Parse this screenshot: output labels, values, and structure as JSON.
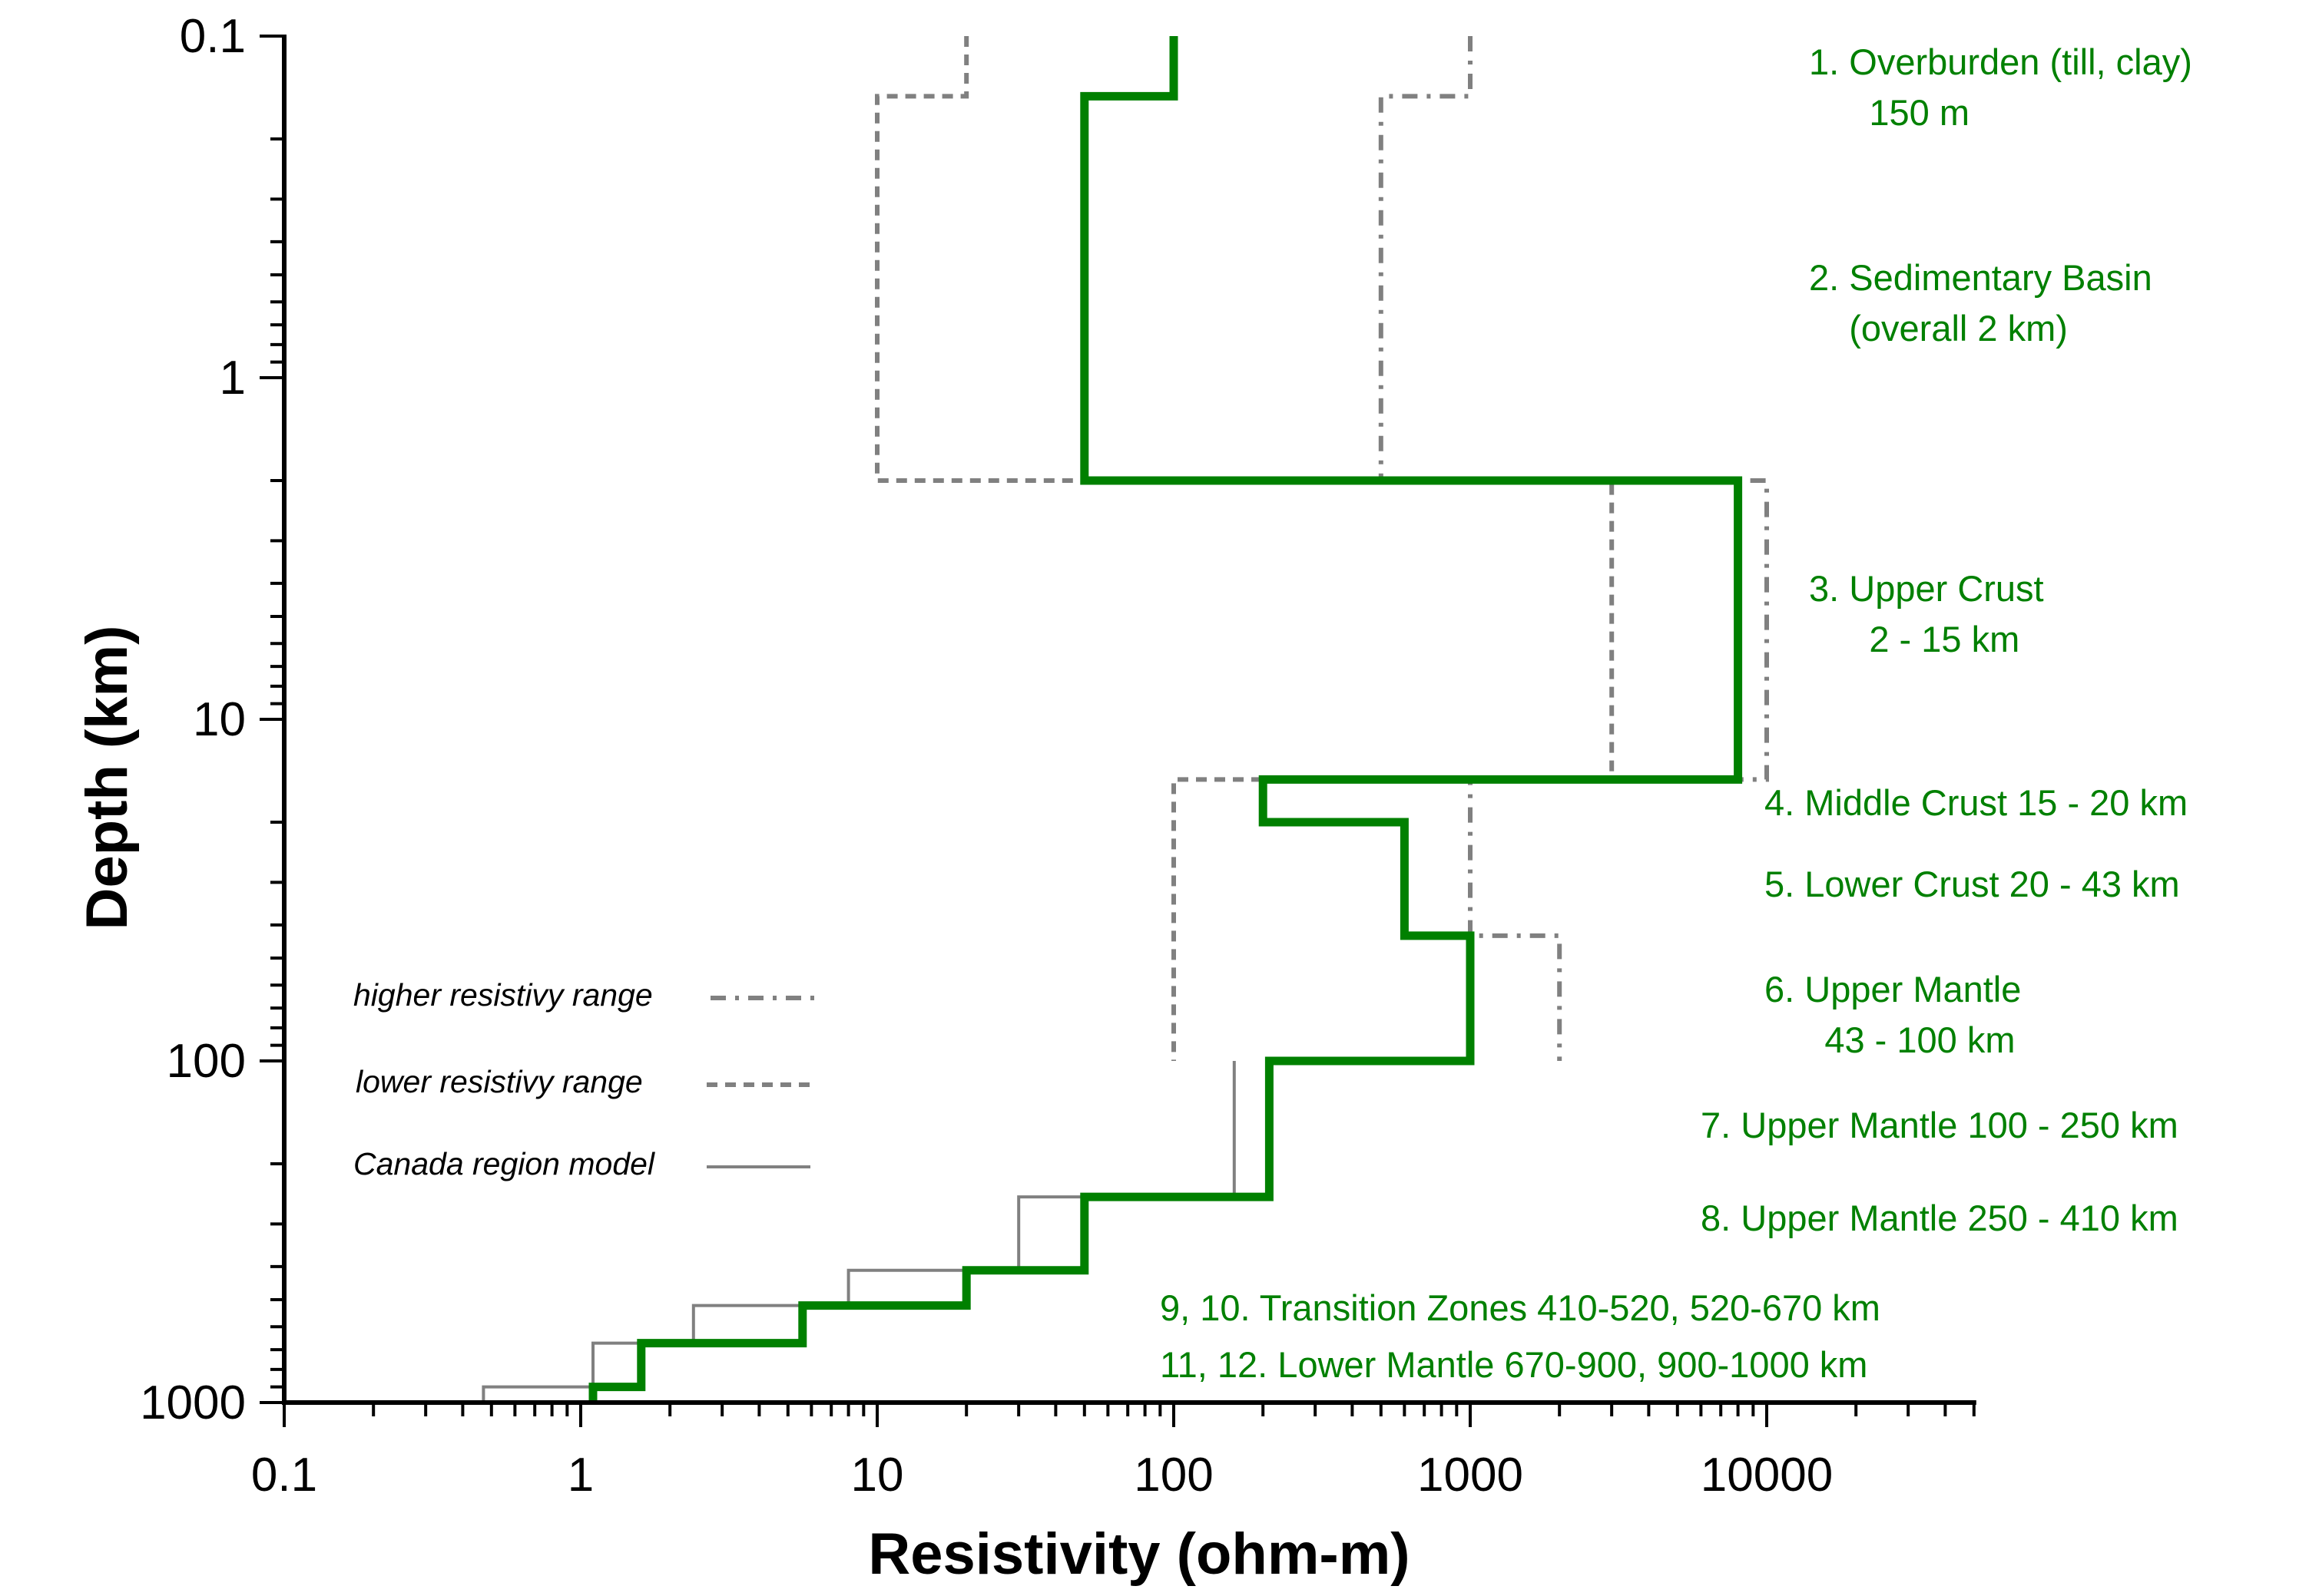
{
  "chart_data": {
    "type": "line",
    "xlabel": "Resistivity (ohm-m)",
    "ylabel": "Depth (km)",
    "x_scale": "log",
    "y_scale": "log",
    "y_inverted": true,
    "xlim": [
      0.1,
      50000
    ],
    "ylim": [
      0.1,
      1000
    ],
    "x_ticks": [
      "0.1",
      "1",
      "10",
      "100",
      "1000",
      "10000"
    ],
    "y_ticks": [
      "0.1",
      "1",
      "10",
      "100",
      "1000"
    ],
    "grid": false,
    "legend_position": "lower-left",
    "series": [
      {
        "name": "",
        "style": "solid-thick",
        "color": "#008000",
        "points": [
          [
            100,
            0.1
          ],
          [
            100,
            0.15
          ],
          [
            50,
            0.15
          ],
          [
            50,
            2
          ],
          [
            8000,
            2
          ],
          [
            8000,
            15
          ],
          [
            200,
            15
          ],
          [
            200,
            20
          ],
          [
            600,
            20
          ],
          [
            600,
            43
          ],
          [
            1000,
            43
          ],
          [
            1000,
            100
          ],
          [
            210,
            100
          ],
          [
            210,
            250
          ],
          [
            50,
            250
          ],
          [
            50,
            410
          ],
          [
            20,
            410
          ],
          [
            20,
            520
          ],
          [
            5.6,
            520
          ],
          [
            5.6,
            670
          ],
          [
            1.6,
            670
          ],
          [
            1.6,
            900
          ],
          [
            1.1,
            900
          ],
          [
            1.1,
            1000
          ]
        ]
      },
      {
        "name": "higher resistivy range",
        "style": "dash-dot",
        "color": "#808080",
        "points": [
          [
            1000,
            0.1
          ],
          [
            1000,
            0.15
          ],
          [
            500,
            0.15
          ],
          [
            500,
            2
          ],
          [
            10000,
            2
          ],
          [
            10000,
            15
          ],
          [
            1000,
            15
          ],
          [
            1000,
            20
          ],
          [
            1000,
            43
          ],
          [
            2000,
            43
          ],
          [
            2000,
            100
          ]
        ]
      },
      {
        "name": "lower resistivy range",
        "style": "dashed",
        "color": "#808080",
        "points": [
          [
            20,
            0.1
          ],
          [
            20,
            0.15
          ],
          [
            10,
            0.15
          ],
          [
            10,
            2
          ],
          [
            3000,
            2
          ],
          [
            3000,
            15
          ],
          [
            100,
            15
          ],
          [
            100,
            100
          ]
        ]
      },
      {
        "name": "Canada region model",
        "style": "solid-thin",
        "color": "#808080",
        "points": [
          [
            160,
            100
          ],
          [
            160,
            250
          ],
          [
            30,
            250
          ],
          [
            30,
            410
          ],
          [
            8,
            410
          ],
          [
            8,
            520
          ],
          [
            2.4,
            520
          ],
          [
            2.4,
            670
          ],
          [
            1.1,
            670
          ],
          [
            1.1,
            900
          ],
          [
            0.47,
            900
          ],
          [
            0.47,
            1000
          ]
        ]
      }
    ],
    "legend": [
      {
        "label": "higher resistivy range",
        "style": "dash-dot"
      },
      {
        "label": "lower resistivy range",
        "style": "dashed"
      },
      {
        "label": "Canada region model",
        "style": "solid-thin"
      }
    ],
    "annotations": [
      {
        "lines": [
          "1. Overburden (till, clay)",
          "   150 m"
        ]
      },
      {
        "lines": [
          "2. Sedimentary Basin",
          "  (overall 2 km)"
        ]
      },
      {
        "lines": [
          "3. Upper Crust",
          "   2 - 15 km"
        ]
      },
      {
        "lines": [
          "4. Middle Crust 15 - 20 km"
        ]
      },
      {
        "lines": [
          "5. Lower Crust 20 - 43 km"
        ]
      },
      {
        "lines": [
          "6. Upper Mantle",
          "   43 - 100 km"
        ]
      },
      {
        "lines": [
          "7. Upper Mantle 100 - 250 km"
        ]
      },
      {
        "lines": [
          "8. Upper Mantle  250 - 410 km"
        ]
      },
      {
        "lines": [
          "9, 10. Transition Zones 410-520, 520-670 km"
        ]
      },
      {
        "lines": [
          "11, 12. Lower Mantle 670-900, 900-1000 km"
        ]
      }
    ]
  }
}
